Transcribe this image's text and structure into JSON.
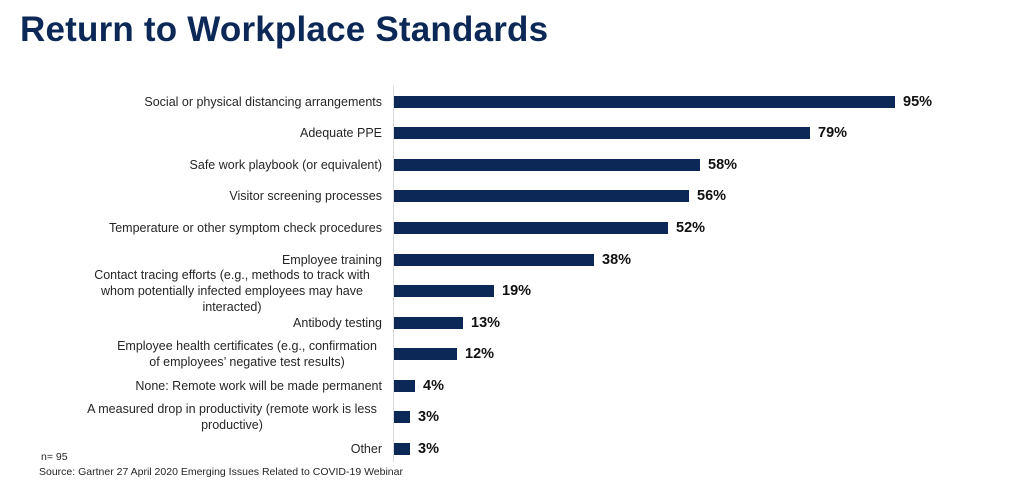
{
  "title": "Return to Workplace Standards",
  "footer": {
    "n": "n= 95",
    "source": "Source: Gartner 27 April 2020 Emerging Issues Related to COVID-19 Webinar"
  },
  "colors": {
    "bar": "#0c2856",
    "title": "#0c2856"
  },
  "chart_data": {
    "type": "bar",
    "orientation": "horizontal",
    "title": "Return to Workplace Standards",
    "xlabel": "",
    "ylabel": "",
    "xlim": [
      0,
      100
    ],
    "grid": false,
    "legend": null,
    "categories": [
      "Social or physical distancing arrangements",
      "Adequate PPE",
      "Safe work playbook (or equivalent)",
      "Visitor screening processes",
      "Temperature or other symptom check procedures",
      "Employee training",
      "Contact tracing efforts (e.g., methods to track with whom potentially infected employees may have interacted)",
      "Antibody testing",
      "Employee health certificates (e.g., confirmation of employees' negative test results)",
      "None: Remote work will be made permanent",
      "A measured drop in productivity (remote work is less productive)",
      "Other"
    ],
    "values": [
      95,
      79,
      58,
      56,
      52,
      38,
      19,
      13,
      12,
      4,
      3,
      3
    ],
    "value_labels": [
      "95%",
      "79%",
      "58%",
      "56%",
      "52%",
      "38%",
      "19%",
      "13%",
      "12%",
      "4%",
      "3%",
      "3%"
    ],
    "annotations": [
      "n= 95",
      "Source: Gartner 27 April 2020 Emerging Issues Related to COVID-19 Webinar"
    ]
  },
  "rows": [
    {
      "label": "Social or physical distancing arrangements",
      "value": "95%"
    },
    {
      "label": "Adequate PPE",
      "value": "79%"
    },
    {
      "label": "Safe work playbook (or equivalent)",
      "value": "58%"
    },
    {
      "label": "Visitor screening processes",
      "value": "56%"
    },
    {
      "label": "Temperature or other symptom check procedures",
      "value": "52%"
    },
    {
      "label": "Employee training",
      "value": "38%"
    },
    {
      "label": "Contact tracing efforts (e.g., methods to track with whom potentially infected employees may have interacted)",
      "value": "19%"
    },
    {
      "label": "Antibody testing",
      "value": "13%"
    },
    {
      "label": "Employee health certificates (e.g., confirmation of employees’ negative test results)",
      "value": "12%"
    },
    {
      "label": "None: Remote work will be made permanent",
      "value": "4%"
    },
    {
      "label": "A measured drop in productivity (remote work is less productive)",
      "value": "3%"
    },
    {
      "label": "Other",
      "value": "3%"
    }
  ]
}
